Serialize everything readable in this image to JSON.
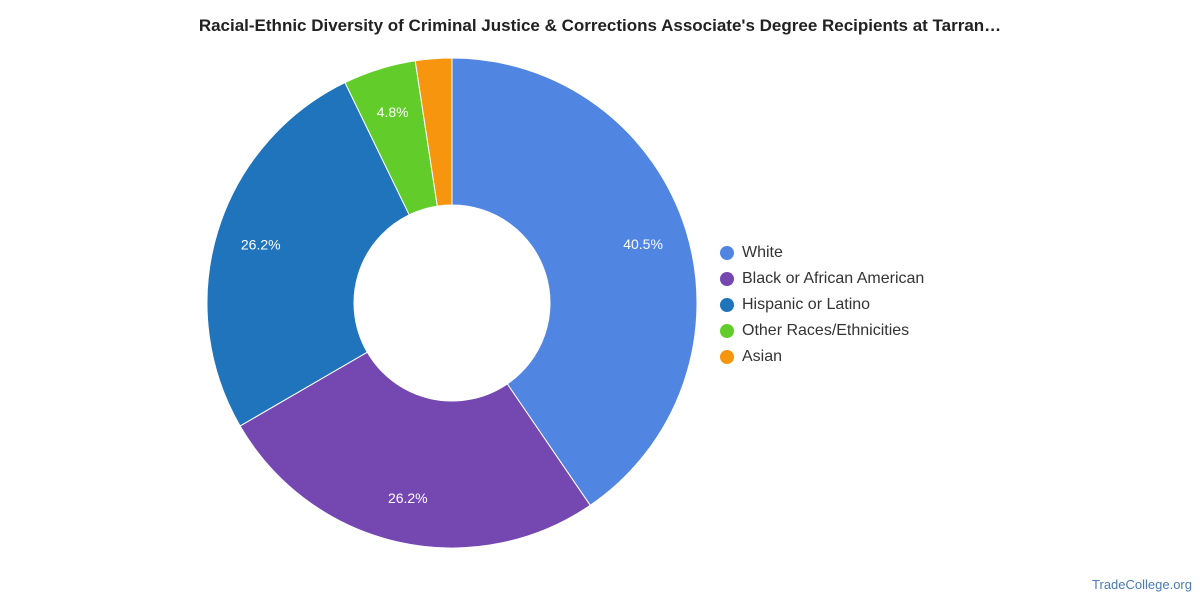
{
  "chart_data": {
    "type": "pie",
    "title": "Racial-Ethnic Diversity of Criminal Justice & Corrections Associate's Degree Recipients at Tarran…",
    "categories": [
      "White",
      "Black or African American",
      "Hispanic or Latino",
      "Other Races/Ethnicities",
      "Asian"
    ],
    "values": [
      40.5,
      26.2,
      26.2,
      4.8,
      2.4
    ],
    "value_labels": [
      "40.5%",
      "26.2%",
      "26.2%",
      "4.8%",
      ""
    ],
    "colors": [
      "#5085e1",
      "#7447b1",
      "#1f74bb",
      "#62cc2a",
      "#f8950f"
    ],
    "legend_position": "right",
    "donut": true
  },
  "footer": {
    "source": "TradeCollege.org"
  }
}
